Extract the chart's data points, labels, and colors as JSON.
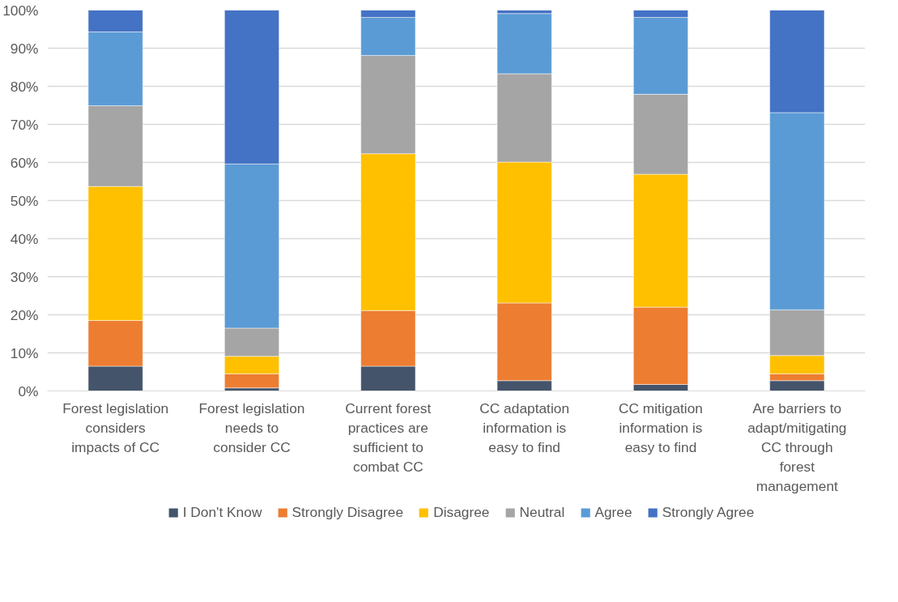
{
  "chart_data": {
    "type": "bar",
    "stacked": true,
    "categories": [
      "Forest legislation\nconsiders\nimpacts of CC",
      "Forest legislation\nneeds to\nconsider CC",
      "Current forest\npractices are\nsufficient to\ncombat CC",
      "CC adaptation\ninformation is\neasy to find",
      "CC mitigation\ninformation is\neasy to find",
      "Are barriers to\nadapt/mitigating\nCC through\nforest\nmanagement"
    ],
    "series": [
      {
        "name": "I Don't Know",
        "color": "#44546a",
        "values": [
          6.5,
          0.8,
          6.5,
          2.7,
          1.7,
          2.7
        ]
      },
      {
        "name": "Strongly Disagree",
        "color": "#ed7d31",
        "values": [
          12.0,
          3.7,
          14.6,
          20.4,
          20.3,
          1.8
        ]
      },
      {
        "name": "Disagree",
        "color": "#ffc000",
        "values": [
          35.2,
          4.6,
          41.2,
          37.0,
          34.9,
          4.8
        ]
      },
      {
        "name": "Neutral",
        "color": "#a5a5a5",
        "values": [
          21.2,
          7.4,
          25.8,
          23.2,
          21.0,
          12.0
        ]
      },
      {
        "name": "Agree",
        "color": "#5b9bd5",
        "values": [
          19.4,
          43.1,
          10.0,
          15.8,
          20.2,
          51.8
        ]
      },
      {
        "name": "Strongly Agree",
        "color": "#4472c4",
        "values": [
          5.7,
          40.4,
          1.9,
          0.9,
          1.9,
          26.9
        ]
      }
    ],
    "ylim": [
      0,
      100
    ],
    "yticks": [
      {
        "value": 0,
        "label": "0%"
      },
      {
        "value": 10,
        "label": "10%"
      },
      {
        "value": 20,
        "label": "20%"
      },
      {
        "value": 30,
        "label": "30%"
      },
      {
        "value": 40,
        "label": "40%"
      },
      {
        "value": 50,
        "label": "50%"
      },
      {
        "value": 60,
        "label": "60%"
      },
      {
        "value": 70,
        "label": "70%"
      },
      {
        "value": 80,
        "label": "80%"
      },
      {
        "value": 90,
        "label": "90%"
      },
      {
        "value": 100,
        "label": "100%"
      }
    ],
    "grid": "y",
    "legend": "bottom"
  }
}
